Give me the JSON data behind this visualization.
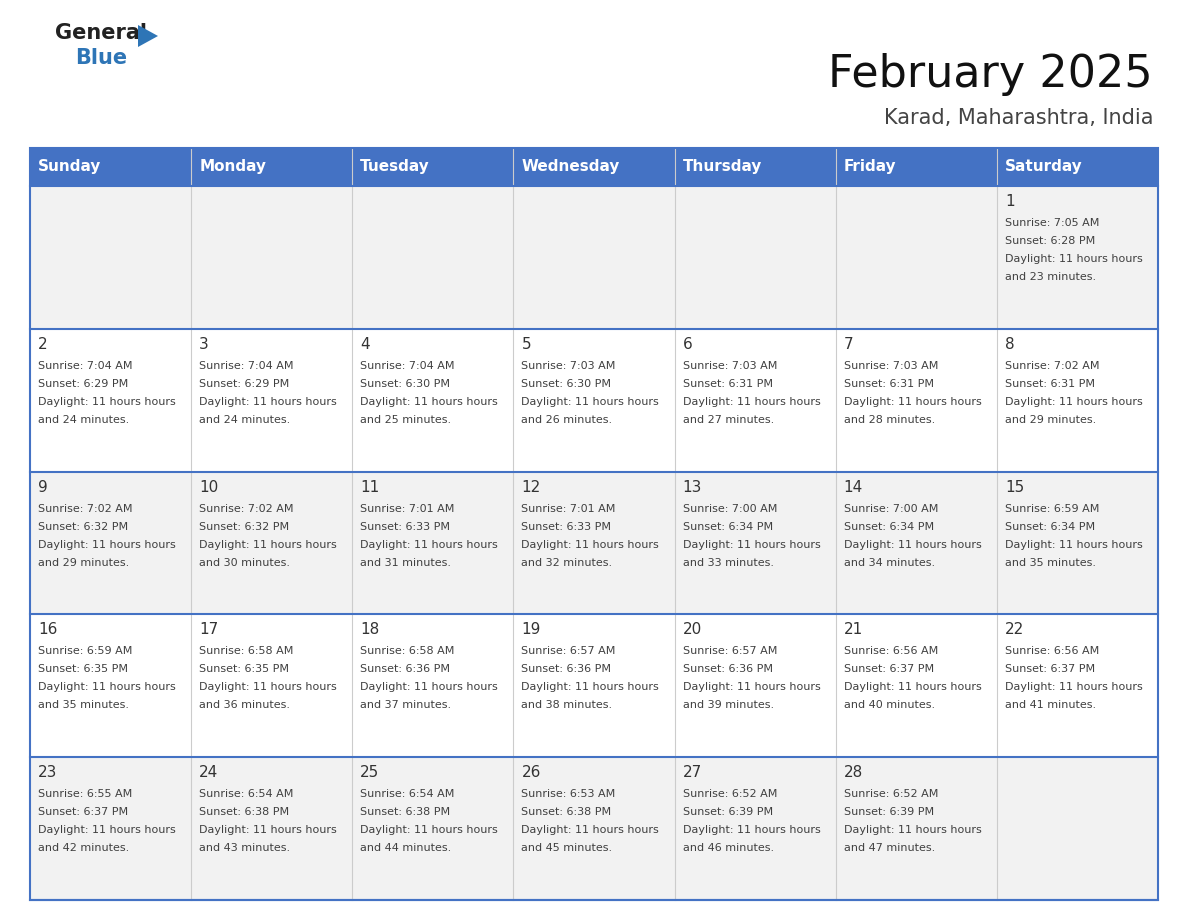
{
  "title": "February 2025",
  "subtitle": "Karad, Maharashtra, India",
  "header_color": "#4472C4",
  "header_text_color": "#FFFFFF",
  "days_of_week": [
    "Sunday",
    "Monday",
    "Tuesday",
    "Wednesday",
    "Thursday",
    "Friday",
    "Saturday"
  ],
  "background_color": "#FFFFFF",
  "cell_bg_row0": "#F2F2F2",
  "cell_bg_row1": "#FFFFFF",
  "row_line_color": "#4472C4",
  "text_color": "#404040",
  "day_num_color": "#333333",
  "logo_general_color": "#222222",
  "logo_blue_color": "#2E75B6",
  "logo_triangle_color": "#2E75B6",
  "title_color": "#111111",
  "subtitle_color": "#444444",
  "calendar_data": [
    [
      null,
      null,
      null,
      null,
      null,
      null,
      {
        "day": 1,
        "sunrise": "7:05 AM",
        "sunset": "6:28 PM",
        "daylight": "11 hours and 23 minutes."
      }
    ],
    [
      {
        "day": 2,
        "sunrise": "7:04 AM",
        "sunset": "6:29 PM",
        "daylight": "11 hours and 24 minutes."
      },
      {
        "day": 3,
        "sunrise": "7:04 AM",
        "sunset": "6:29 PM",
        "daylight": "11 hours and 24 minutes."
      },
      {
        "day": 4,
        "sunrise": "7:04 AM",
        "sunset": "6:30 PM",
        "daylight": "11 hours and 25 minutes."
      },
      {
        "day": 5,
        "sunrise": "7:03 AM",
        "sunset": "6:30 PM",
        "daylight": "11 hours and 26 minutes."
      },
      {
        "day": 6,
        "sunrise": "7:03 AM",
        "sunset": "6:31 PM",
        "daylight": "11 hours and 27 minutes."
      },
      {
        "day": 7,
        "sunrise": "7:03 AM",
        "sunset": "6:31 PM",
        "daylight": "11 hours and 28 minutes."
      },
      {
        "day": 8,
        "sunrise": "7:02 AM",
        "sunset": "6:31 PM",
        "daylight": "11 hours and 29 minutes."
      }
    ],
    [
      {
        "day": 9,
        "sunrise": "7:02 AM",
        "sunset": "6:32 PM",
        "daylight": "11 hours and 29 minutes."
      },
      {
        "day": 10,
        "sunrise": "7:02 AM",
        "sunset": "6:32 PM",
        "daylight": "11 hours and 30 minutes."
      },
      {
        "day": 11,
        "sunrise": "7:01 AM",
        "sunset": "6:33 PM",
        "daylight": "11 hours and 31 minutes."
      },
      {
        "day": 12,
        "sunrise": "7:01 AM",
        "sunset": "6:33 PM",
        "daylight": "11 hours and 32 minutes."
      },
      {
        "day": 13,
        "sunrise": "7:00 AM",
        "sunset": "6:34 PM",
        "daylight": "11 hours and 33 minutes."
      },
      {
        "day": 14,
        "sunrise": "7:00 AM",
        "sunset": "6:34 PM",
        "daylight": "11 hours and 34 minutes."
      },
      {
        "day": 15,
        "sunrise": "6:59 AM",
        "sunset": "6:34 PM",
        "daylight": "11 hours and 35 minutes."
      }
    ],
    [
      {
        "day": 16,
        "sunrise": "6:59 AM",
        "sunset": "6:35 PM",
        "daylight": "11 hours and 35 minutes."
      },
      {
        "day": 17,
        "sunrise": "6:58 AM",
        "sunset": "6:35 PM",
        "daylight": "11 hours and 36 minutes."
      },
      {
        "day": 18,
        "sunrise": "6:58 AM",
        "sunset": "6:36 PM",
        "daylight": "11 hours and 37 minutes."
      },
      {
        "day": 19,
        "sunrise": "6:57 AM",
        "sunset": "6:36 PM",
        "daylight": "11 hours and 38 minutes."
      },
      {
        "day": 20,
        "sunrise": "6:57 AM",
        "sunset": "6:36 PM",
        "daylight": "11 hours and 39 minutes."
      },
      {
        "day": 21,
        "sunrise": "6:56 AM",
        "sunset": "6:37 PM",
        "daylight": "11 hours and 40 minutes."
      },
      {
        "day": 22,
        "sunrise": "6:56 AM",
        "sunset": "6:37 PM",
        "daylight": "11 hours and 41 minutes."
      }
    ],
    [
      {
        "day": 23,
        "sunrise": "6:55 AM",
        "sunset": "6:37 PM",
        "daylight": "11 hours and 42 minutes."
      },
      {
        "day": 24,
        "sunrise": "6:54 AM",
        "sunset": "6:38 PM",
        "daylight": "11 hours and 43 minutes."
      },
      {
        "day": 25,
        "sunrise": "6:54 AM",
        "sunset": "6:38 PM",
        "daylight": "11 hours and 44 minutes."
      },
      {
        "day": 26,
        "sunrise": "6:53 AM",
        "sunset": "6:38 PM",
        "daylight": "11 hours and 45 minutes."
      },
      {
        "day": 27,
        "sunrise": "6:52 AM",
        "sunset": "6:39 PM",
        "daylight": "11 hours and 46 minutes."
      },
      {
        "day": 28,
        "sunrise": "6:52 AM",
        "sunset": "6:39 PM",
        "daylight": "11 hours and 47 minutes."
      },
      null
    ]
  ]
}
